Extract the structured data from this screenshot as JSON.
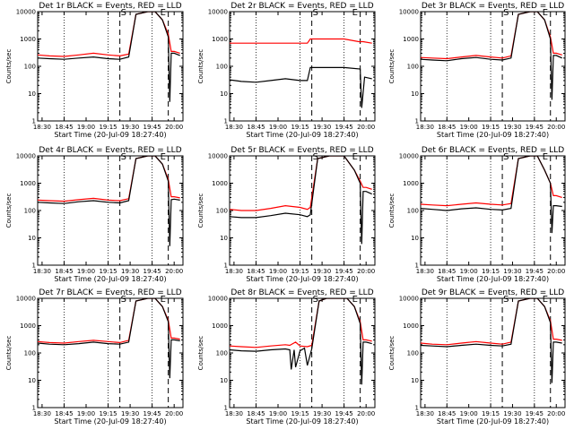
{
  "figure": {
    "grid_rows": 3,
    "grid_cols": 3
  },
  "chart_data": [
    {
      "type": "line",
      "title": "Det 1r  BLACK = Events, RED = LLD",
      "xlabel": "Start Time (20-Jul-09 18:27:40)",
      "ylabel": "Counts/sec",
      "ylim": [
        1,
        10000
      ],
      "y_scale": "log",
      "x_ticks": [
        "18:30",
        "18:45",
        "19:00",
        "19:15",
        "19:30",
        "19:45",
        "20:00"
      ],
      "y_ticks": [
        "1",
        "10",
        "100",
        "1000",
        "10000"
      ],
      "event_marker_labels": [
        "S",
        "E"
      ],
      "colors": {
        "events": "#000000",
        "lld": "#ff0000"
      },
      "series": [
        {
          "name": "Events",
          "color": "#000000",
          "x": [
            "18:27",
            "18:35",
            "18:45",
            "18:55",
            "19:05",
            "19:15",
            "19:23",
            "19:29",
            "19:34",
            "19:42",
            "19:47",
            "19:52",
            "19:56",
            "19:57",
            "19:58",
            "20:00",
            "20:04"
          ],
          "y": [
            200,
            190,
            180,
            200,
            220,
            190,
            180,
            220,
            8000,
            10000,
            10000,
            5000,
            1200,
            5,
            300,
            300,
            250
          ]
        },
        {
          "name": "LLD",
          "color": "#ff0000",
          "x": [
            "18:27",
            "18:35",
            "18:45",
            "18:55",
            "19:05",
            "19:15",
            "19:23",
            "19:29",
            "19:34",
            "19:42",
            "19:47",
            "19:52",
            "19:56",
            "19:58",
            "20:00",
            "20:04"
          ],
          "y": [
            260,
            240,
            230,
            260,
            300,
            260,
            240,
            280,
            8000,
            10000,
            10000,
            5000,
            1500,
            350,
            350,
            300
          ]
        }
      ]
    },
    {
      "type": "line",
      "title": "Det 2r  BLACK = Events, RED = LLD",
      "xlabel": "Start Time (20-Jul-09 18:27:40)",
      "ylabel": "Counts/sec",
      "ylim": [
        1,
        10000
      ],
      "y_scale": "log",
      "x_ticks": [
        "18:30",
        "18:45",
        "19:00",
        "19:15",
        "19:30",
        "19:45",
        "20:00"
      ],
      "y_ticks": [
        "1",
        "10",
        "100",
        "1000",
        "10000"
      ],
      "event_marker_labels": [
        "S",
        "E"
      ],
      "colors": {
        "events": "#000000",
        "lld": "#ff0000"
      },
      "series": [
        {
          "name": "Events",
          "color": "#000000",
          "x": [
            "18:27",
            "18:35",
            "18:45",
            "18:55",
            "19:05",
            "19:15",
            "19:20",
            "19:22",
            "19:45",
            "19:56",
            "19:57",
            "19:59",
            "20:04"
          ],
          "y": [
            32,
            28,
            26,
            30,
            35,
            30,
            30,
            90,
            90,
            80,
            3,
            40,
            35
          ]
        },
        {
          "name": "LLD",
          "color": "#ff0000",
          "x": [
            "18:27",
            "18:45",
            "19:05",
            "19:20",
            "19:22",
            "19:45",
            "19:55",
            "19:58",
            "20:04"
          ],
          "y": [
            700,
            700,
            700,
            700,
            1000,
            1000,
            800,
            800,
            700
          ]
        }
      ]
    },
    {
      "type": "line",
      "title": "Det 3r  BLACK = Events, RED = LLD",
      "xlabel": "Start Time (20-Jul-09 18:27:40)",
      "ylabel": "Counts/sec",
      "ylim": [
        1,
        10000
      ],
      "y_scale": "log",
      "x_ticks": [
        "18:30",
        "18:45",
        "19:00",
        "19:15",
        "19:30",
        "19:45",
        "20:00"
      ],
      "y_ticks": [
        "1",
        "10",
        "100",
        "1000",
        "10000"
      ],
      "event_marker_labels": [
        "S",
        "E"
      ],
      "colors": {
        "events": "#000000",
        "lld": "#ff0000"
      },
      "series": [
        {
          "name": "Events",
          "color": "#000000",
          "x": [
            "18:27",
            "18:35",
            "18:45",
            "18:55",
            "19:05",
            "19:15",
            "19:23",
            "19:29",
            "19:34",
            "19:42",
            "19:47",
            "19:52",
            "19:56",
            "19:57",
            "19:58",
            "20:00",
            "20:04"
          ],
          "y": [
            180,
            170,
            160,
            190,
            210,
            180,
            170,
            200,
            8000,
            10000,
            10000,
            5000,
            1000,
            6,
            250,
            250,
            200
          ]
        },
        {
          "name": "LLD",
          "color": "#ff0000",
          "x": [
            "18:27",
            "18:35",
            "18:45",
            "18:55",
            "19:05",
            "19:15",
            "19:23",
            "19:29",
            "19:34",
            "19:42",
            "19:47",
            "19:52",
            "19:56",
            "19:58",
            "20:00",
            "20:04"
          ],
          "y": [
            210,
            200,
            190,
            220,
            250,
            220,
            200,
            240,
            8000,
            10000,
            10000,
            5000,
            1200,
            300,
            300,
            260
          ]
        }
      ]
    },
    {
      "type": "line",
      "title": "Det 4r  BLACK = Events, RED = LLD",
      "xlabel": "Start Time (20-Jul-09 18:27:40)",
      "ylabel": "Counts/sec",
      "ylim": [
        1,
        10000
      ],
      "y_scale": "log",
      "x_ticks": [
        "18:30",
        "18:45",
        "19:00",
        "19:15",
        "19:30",
        "19:45",
        "20:00"
      ],
      "y_ticks": [
        "1",
        "10",
        "100",
        "1000",
        "10000"
      ],
      "event_marker_labels": [
        "S",
        "E"
      ],
      "colors": {
        "events": "#000000",
        "lld": "#ff0000"
      },
      "series": [
        {
          "name": "Events",
          "color": "#000000",
          "x": [
            "18:27",
            "18:35",
            "18:45",
            "18:55",
            "19:05",
            "19:15",
            "19:23",
            "19:29",
            "19:34",
            "19:42",
            "19:47",
            "19:52",
            "19:56",
            "19:57",
            "19:58",
            "20:00",
            "20:04"
          ],
          "y": [
            200,
            190,
            180,
            210,
            230,
            200,
            190,
            230,
            8000,
            10000,
            10000,
            5000,
            1200,
            5,
            250,
            260,
            240
          ]
        },
        {
          "name": "LLD",
          "color": "#ff0000",
          "x": [
            "18:27",
            "18:35",
            "18:45",
            "18:55",
            "19:05",
            "19:15",
            "19:23",
            "19:29",
            "19:34",
            "19:42",
            "19:47",
            "19:52",
            "19:56",
            "19:58",
            "20:00",
            "20:04"
          ],
          "y": [
            240,
            230,
            220,
            250,
            280,
            240,
            230,
            270,
            8000,
            10000,
            10000,
            5000,
            1400,
            320,
            320,
            290
          ]
        }
      ]
    },
    {
      "type": "line",
      "title": "Det 5r  BLACK = Events, RED = LLD",
      "xlabel": "Start Time (20-Jul-09 18:27:40)",
      "ylabel": "Counts/sec",
      "ylim": [
        1,
        10000
      ],
      "y_scale": "log",
      "x_ticks": [
        "18:30",
        "18:45",
        "19:00",
        "19:15",
        "19:30",
        "19:45",
        "20:00"
      ],
      "y_ticks": [
        "1",
        "10",
        "100",
        "1000",
        "10000"
      ],
      "event_marker_labels": [
        "S",
        "E"
      ],
      "colors": {
        "events": "#000000",
        "lld": "#ff0000"
      },
      "series": [
        {
          "name": "Events",
          "color": "#000000",
          "x": [
            "18:27",
            "18:35",
            "18:45",
            "18:55",
            "19:05",
            "19:15",
            "19:20",
            "19:22",
            "19:27",
            "19:35",
            "19:45",
            "19:52",
            "19:56",
            "19:57",
            "19:58",
            "20:00",
            "20:04"
          ],
          "y": [
            60,
            55,
            55,
            65,
            80,
            70,
            60,
            70,
            8000,
            10000,
            10000,
            3000,
            1000,
            6,
            500,
            500,
            400
          ]
        },
        {
          "name": "LLD",
          "color": "#ff0000",
          "x": [
            "18:27",
            "18:35",
            "18:45",
            "18:55",
            "19:05",
            "19:15",
            "19:20",
            "19:22",
            "19:27",
            "19:35",
            "19:45",
            "19:52",
            "19:56",
            "19:58",
            "20:00",
            "20:04"
          ],
          "y": [
            110,
            100,
            100,
            120,
            150,
            130,
            110,
            130,
            8000,
            10000,
            10000,
            3000,
            1200,
            700,
            700,
            600
          ]
        }
      ]
    },
    {
      "type": "line",
      "title": "Det 6r  BLACK = Events, RED = LLD",
      "xlabel": "Start Time (20-Jul-09 18:27:40)",
      "ylabel": "Counts/sec",
      "ylim": [
        1,
        10000
      ],
      "y_scale": "log",
      "x_ticks": [
        "18:30",
        "18:45",
        "19:00",
        "19:15",
        "19:30",
        "19:45",
        "20:00"
      ],
      "y_ticks": [
        "1",
        "10",
        "100",
        "1000",
        "10000"
      ],
      "event_marker_labels": [
        "S",
        "E"
      ],
      "colors": {
        "events": "#000000",
        "lld": "#ff0000"
      },
      "series": [
        {
          "name": "Events",
          "color": "#000000",
          "x": [
            "18:27",
            "18:35",
            "18:45",
            "18:55",
            "19:05",
            "19:15",
            "19:23",
            "19:29",
            "19:34",
            "19:42",
            "19:47",
            "19:52",
            "19:56",
            "19:57",
            "19:58",
            "20:00",
            "20:04"
          ],
          "y": [
            120,
            110,
            100,
            115,
            125,
            110,
            105,
            120,
            8000,
            10000,
            10000,
            3000,
            1000,
            15,
            150,
            150,
            140
          ]
        },
        {
          "name": "LLD",
          "color": "#ff0000",
          "x": [
            "18:27",
            "18:35",
            "18:45",
            "18:55",
            "19:05",
            "19:15",
            "19:23",
            "19:29",
            "19:34",
            "19:42",
            "19:47",
            "19:52",
            "19:56",
            "19:58",
            "20:00",
            "20:04"
          ],
          "y": [
            170,
            160,
            150,
            170,
            190,
            170,
            160,
            180,
            8000,
            10000,
            10000,
            3000,
            1000,
            350,
            350,
            300
          ]
        }
      ]
    },
    {
      "type": "line",
      "title": "Det 7r  BLACK = Events, RED = LLD",
      "xlabel": "Start Time (20-Jul-09 18:27:40)",
      "ylabel": "Counts/sec",
      "ylim": [
        1,
        10000
      ],
      "y_scale": "log",
      "x_ticks": [
        "18:30",
        "18:45",
        "19:00",
        "19:15",
        "19:30",
        "19:45",
        "20:00"
      ],
      "y_ticks": [
        "1",
        "10",
        "100",
        "1000",
        "10000"
      ],
      "event_marker_labels": [
        "S",
        "E"
      ],
      "colors": {
        "events": "#000000",
        "lld": "#ff0000"
      },
      "series": [
        {
          "name": "Events",
          "color": "#000000",
          "x": [
            "18:27",
            "18:35",
            "18:45",
            "18:55",
            "19:05",
            "19:15",
            "19:23",
            "19:29",
            "19:34",
            "19:42",
            "19:47",
            "19:52",
            "19:56",
            "19:57",
            "19:58",
            "20:00",
            "20:04"
          ],
          "y": [
            230,
            210,
            200,
            220,
            250,
            220,
            210,
            250,
            8000,
            10000,
            10000,
            5000,
            1400,
            12,
            300,
            300,
            280
          ]
        },
        {
          "name": "LLD",
          "color": "#ff0000",
          "x": [
            "18:27",
            "18:35",
            "18:45",
            "18:55",
            "19:05",
            "19:15",
            "19:23",
            "19:29",
            "19:34",
            "19:42",
            "19:47",
            "19:52",
            "19:56",
            "19:58",
            "20:00",
            "20:04"
          ],
          "y": [
            260,
            240,
            230,
            260,
            290,
            260,
            240,
            290,
            8000,
            10000,
            10000,
            5000,
            1600,
            350,
            350,
            320
          ]
        }
      ]
    },
    {
      "type": "line",
      "title": "Det 8r  BLACK = Events, RED = LLD",
      "xlabel": "Start Time (20-Jul-09 18:27:40)",
      "ylabel": "Counts/sec",
      "ylim": [
        1,
        10000
      ],
      "y_scale": "log",
      "x_ticks": [
        "18:30",
        "18:45",
        "19:00",
        "19:15",
        "19:30",
        "19:45",
        "20:00"
      ],
      "y_ticks": [
        "1",
        "10",
        "100",
        "1000",
        "10000"
      ],
      "event_marker_labels": [
        "S",
        "E"
      ],
      "colors": {
        "events": "#000000",
        "lld": "#ff0000"
      },
      "series": [
        {
          "name": "Events",
          "color": "#000000",
          "x": [
            "18:27",
            "18:35",
            "18:45",
            "18:55",
            "19:05",
            "19:08",
            "19:09",
            "19:11",
            "19:12",
            "19:15",
            "19:18",
            "19:20",
            "19:23",
            "19:28",
            "19:33",
            "19:40",
            "19:47",
            "19:52",
            "19:56",
            "19:57",
            "19:58",
            "20:00",
            "20:04"
          ],
          "y": [
            130,
            120,
            115,
            130,
            140,
            130,
            25,
            130,
            30,
            120,
            150,
            35,
            140,
            8000,
            10000,
            10000,
            10000,
            5000,
            1200,
            7,
            250,
            250,
            220
          ]
        },
        {
          "name": "LLD",
          "color": "#ff0000",
          "x": [
            "18:27",
            "18:35",
            "18:45",
            "18:55",
            "19:05",
            "19:08",
            "19:12",
            "19:15",
            "19:20",
            "19:23",
            "19:28",
            "19:33",
            "19:40",
            "19:47",
            "19:52",
            "19:56",
            "19:58",
            "20:00",
            "20:04"
          ],
          "y": [
            180,
            170,
            160,
            180,
            200,
            190,
            250,
            180,
            170,
            190,
            8000,
            10000,
            10000,
            10000,
            5000,
            1400,
            300,
            300,
            270
          ]
        }
      ]
    },
    {
      "type": "line",
      "title": "Det 9r  BLACK = Events, RED = LLD",
      "xlabel": "Start Time (20-Jul-09 18:27:40)",
      "ylabel": "Counts/sec",
      "ylim": [
        1,
        10000
      ],
      "y_scale": "log",
      "x_ticks": [
        "18:30",
        "18:45",
        "19:00",
        "19:15",
        "19:30",
        "19:45",
        "20:00"
      ],
      "y_ticks": [
        "1",
        "10",
        "100",
        "1000",
        "10000"
      ],
      "event_marker_labels": [
        "S",
        "E"
      ],
      "colors": {
        "events": "#000000",
        "lld": "#ff0000"
      },
      "series": [
        {
          "name": "Events",
          "color": "#000000",
          "x": [
            "18:27",
            "18:35",
            "18:45",
            "18:55",
            "19:05",
            "19:15",
            "19:23",
            "19:29",
            "19:34",
            "19:42",
            "19:47",
            "19:52",
            "19:56",
            "19:57",
            "19:58",
            "20:00",
            "20:04"
          ],
          "y": [
            190,
            180,
            170,
            190,
            210,
            190,
            180,
            210,
            8000,
            10000,
            10000,
            5000,
            1300,
            8,
            250,
            250,
            230
          ]
        },
        {
          "name": "LLD",
          "color": "#ff0000",
          "x": [
            "18:27",
            "18:35",
            "18:45",
            "18:55",
            "19:05",
            "19:15",
            "19:23",
            "19:29",
            "19:34",
            "19:42",
            "19:47",
            "19:52",
            "19:56",
            "19:58",
            "20:00",
            "20:04"
          ],
          "y": [
            230,
            210,
            200,
            230,
            260,
            230,
            210,
            250,
            8000,
            10000,
            10000,
            5000,
            1500,
            320,
            320,
            290
          ]
        }
      ]
    }
  ]
}
